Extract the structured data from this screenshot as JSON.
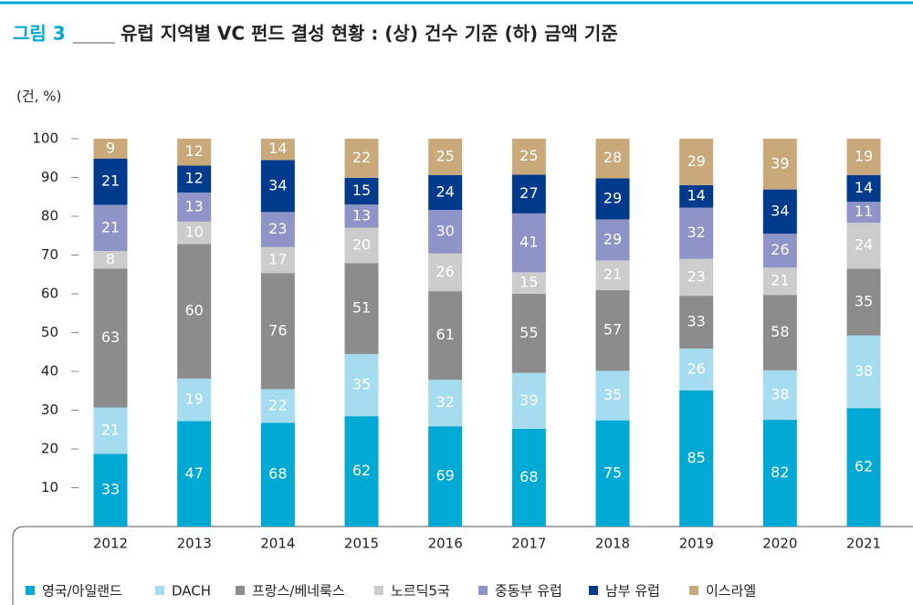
{
  "chart_data": {
    "type": "bar",
    "stacking": "percent",
    "figure_label": "그림 3",
    "title": "유럽 지역별 VC 펀드 결성 현황 : (상) 건수 기준 (하) 금액 기준",
    "unit_label": "(건, %)",
    "categories": [
      "2012",
      "2013",
      "2014",
      "2015",
      "2016",
      "2017",
      "2018",
      "2019",
      "2020",
      "2021"
    ],
    "series": [
      {
        "name": "영국/아일랜드",
        "color": "#00a9d4",
        "values": [
          33,
          47,
          68,
          62,
          69,
          68,
          75,
          85,
          82,
          62
        ]
      },
      {
        "name": "DACH",
        "color": "#a5dcf0",
        "values": [
          21,
          19,
          22,
          35,
          32,
          39,
          35,
          26,
          38,
          38
        ]
      },
      {
        "name": "프랑스/베네룩스",
        "color": "#8c8c8c",
        "values": [
          63,
          60,
          76,
          51,
          61,
          55,
          57,
          33,
          58,
          35
        ]
      },
      {
        "name": "노르딕5국",
        "color": "#cccccc",
        "values": [
          8,
          10,
          17,
          20,
          26,
          15,
          21,
          23,
          21,
          24
        ]
      },
      {
        "name": "중동부 유럽",
        "color": "#8e93c8",
        "values": [
          21,
          13,
          23,
          13,
          30,
          41,
          29,
          32,
          26,
          11
        ]
      },
      {
        "name": "남부 유럽",
        "color": "#003a8c",
        "values": [
          21,
          12,
          34,
          15,
          24,
          27,
          29,
          14,
          34,
          14
        ]
      },
      {
        "name": "이스라엘",
        "color": "#c9a87a",
        "values": [
          9,
          12,
          14,
          22,
          25,
          25,
          28,
          29,
          39,
          19
        ]
      }
    ],
    "ylim": [
      0,
      100
    ],
    "yticks": [
      10,
      20,
      30,
      40,
      50,
      60,
      70,
      80,
      90,
      100
    ]
  }
}
